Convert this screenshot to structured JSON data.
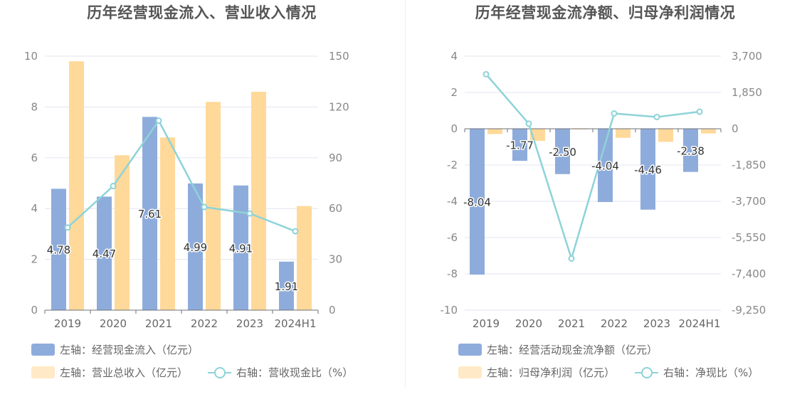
{
  "chart_data": [
    {
      "type": "bar",
      "title": "历年经营现金流入、营业收入情况",
      "categories": [
        "2019",
        "2020",
        "2021",
        "2022",
        "2023",
        "2024H1"
      ],
      "left_axis": {
        "ylim": [
          0,
          10
        ],
        "ticks": [
          0,
          2,
          4,
          6,
          8,
          10
        ],
        "tick_labels": [
          "0",
          "2",
          "4",
          "6",
          "8",
          "10"
        ]
      },
      "right_axis": {
        "ylim": [
          0,
          150
        ],
        "ticks": [
          0,
          30,
          60,
          90,
          120,
          150
        ],
        "tick_labels": [
          "0",
          "30",
          "60",
          "90",
          "120",
          "150"
        ]
      },
      "series": [
        {
          "name": "左轴：经营现金流入（亿元）",
          "axis": "left",
          "kind": "bar",
          "color": "#8eacdb",
          "values": [
            4.78,
            4.47,
            7.61,
            4.99,
            4.91,
            1.91
          ],
          "labels": [
            "4.78",
            "4.47",
            "7.61",
            "4.99",
            "4.91",
            "1.91"
          ]
        },
        {
          "name": "左轴：营业总收入（亿元）",
          "axis": "left",
          "kind": "bar",
          "color": "#ffd99a",
          "values": [
            9.8,
            6.1,
            6.8,
            8.2,
            8.6,
            4.1
          ]
        },
        {
          "name": "右轴：营收现金比（%）",
          "axis": "right",
          "kind": "line",
          "color": "#8dd3d8",
          "values": [
            48.8,
            73.3,
            111.9,
            60.9,
            57.1,
            46.6
          ]
        }
      ]
    },
    {
      "type": "bar",
      "title": "历年经营现金流净额、归母净利润情况",
      "categories": [
        "2019",
        "2020",
        "2021",
        "2022",
        "2023",
        "2024H1"
      ],
      "left_axis": {
        "ylim": [
          -10,
          4
        ],
        "ticks": [
          -10,
          -8,
          -6,
          -4,
          -2,
          0,
          2,
          4
        ],
        "tick_labels": [
          "-10",
          "-8",
          "-6",
          "-4",
          "-2",
          "0",
          "2",
          "4"
        ]
      },
      "right_axis": {
        "ylim": [
          -9250,
          3700
        ],
        "ticks": [
          -9250,
          -7400,
          -5550,
          -3700,
          -1850,
          0,
          1850,
          3700
        ],
        "tick_labels": [
          "-9,250",
          "-7,400",
          "-5,550",
          "-3,700",
          "-1,850",
          "0",
          "1,850",
          "3,700"
        ]
      },
      "series": [
        {
          "name": "左轴：经营活动现金流净额（亿元）",
          "axis": "left",
          "kind": "bar",
          "color": "#8eacdb",
          "values": [
            -8.04,
            -1.77,
            -2.5,
            -4.04,
            -4.46,
            -2.38
          ],
          "labels": [
            "-8.04",
            "-1.77",
            "-2.50",
            "-4.04",
            "-4.46",
            "-2.38"
          ]
        },
        {
          "name": "左轴：归母净利润（亿元）",
          "axis": "left",
          "kind": "bar",
          "color": "#ffd99a",
          "values": [
            -0.29,
            -0.67,
            -0.04,
            -0.5,
            -0.72,
            -0.26
          ]
        },
        {
          "name": "右轴：净现比（%）",
          "axis": "right",
          "kind": "line",
          "color": "#8dd3d8",
          "values": [
            2780,
            260,
            -6620,
            780,
            600,
            870
          ]
        }
      ]
    }
  ]
}
